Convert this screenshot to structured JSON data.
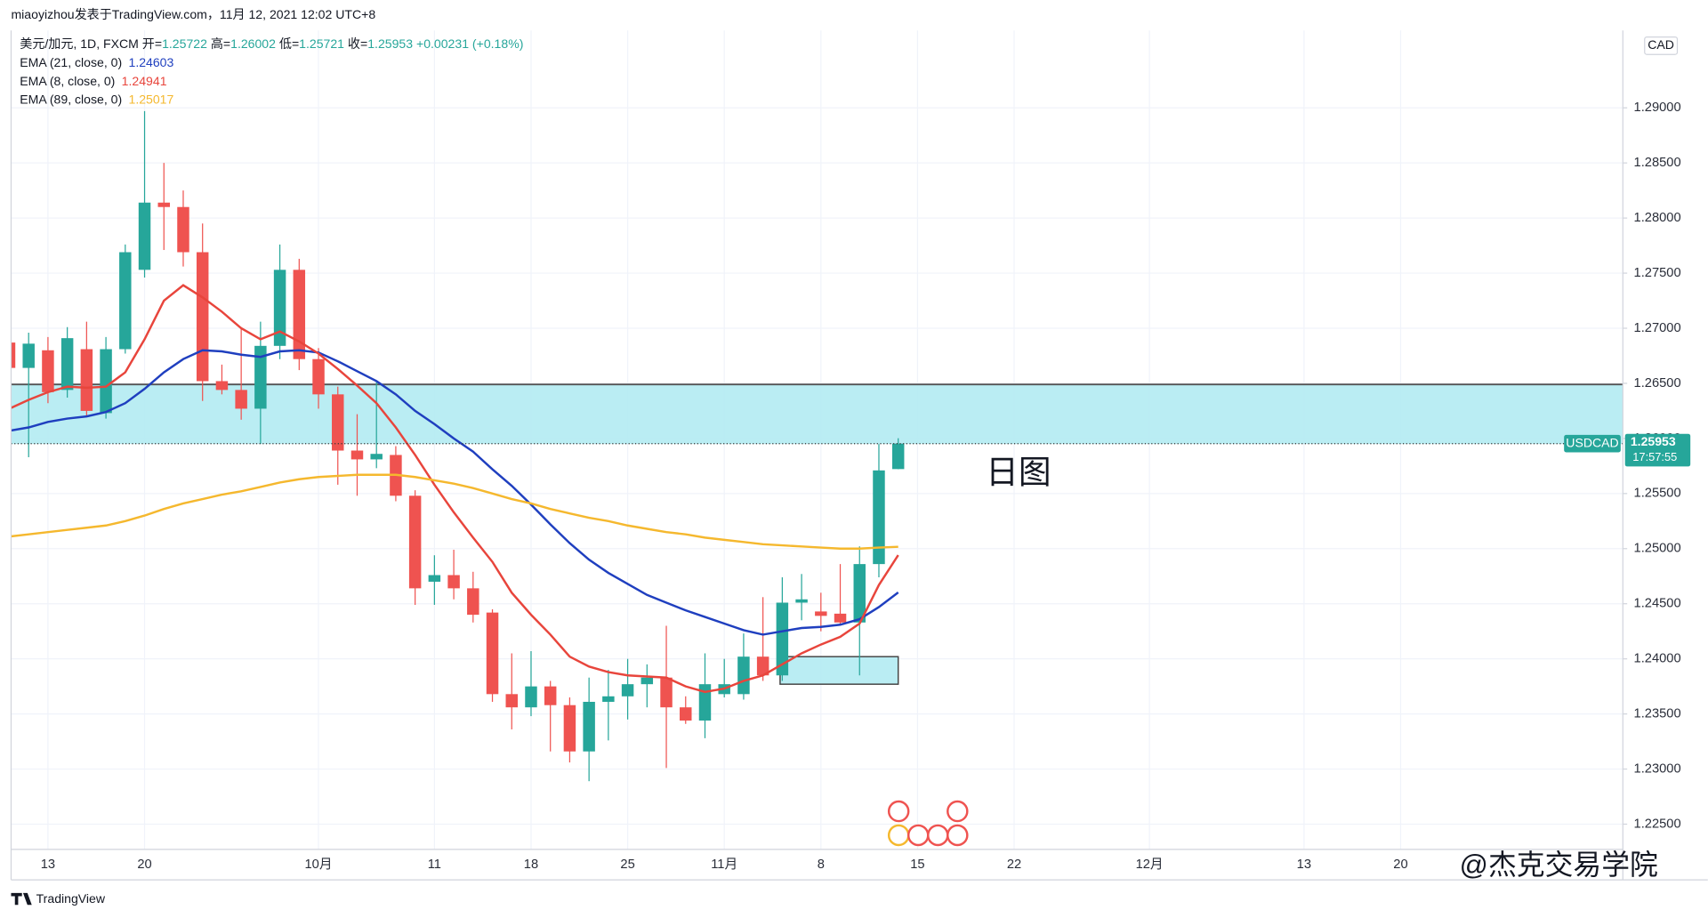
{
  "header": {
    "publisher": "miaoyizhou发表于TradingView.com，11月 12, 2021 12:02 UTC+8"
  },
  "chart_data": {
    "type": "candlestick",
    "title": "美元/加元, 1D, FXCM",
    "ohlc_labels": {
      "open": "开=",
      "high": "高=",
      "low": "低=",
      "close": "收="
    },
    "change_label": "+0.00231 (+0.18%)",
    "symbol": "USDCAD",
    "countdown": "17:57:55",
    "currency": "CAD",
    "annotation": "日图",
    "up_color": "#26a69a",
    "down_color": "#ef5350",
    "zone_color": "#b2ebf2",
    "categories": [
      null,
      null,
      "13",
      null,
      null,
      null,
      null,
      "20",
      null,
      null,
      null,
      null,
      null,
      null,
      null,
      null,
      "10月",
      null,
      null,
      null,
      null,
      null,
      "11",
      null,
      null,
      null,
      null,
      "18",
      null,
      null,
      null,
      null,
      "25",
      null,
      null,
      null,
      null,
      "11月",
      null,
      null,
      null,
      null,
      "8",
      null,
      null,
      null,
      null,
      "15",
      null,
      null,
      null,
      null,
      "22",
      null,
      null,
      null,
      null,
      null,
      null,
      "12月",
      null,
      null,
      null,
      null,
      null,
      null,
      null,
      "13",
      null,
      null,
      null,
      null,
      "20",
      null,
      null,
      null,
      null,
      null,
      null,
      null,
      null,
      null,
      null,
      null
    ],
    "open": [
      1.2687,
      1.2664,
      1.268,
      1.2644,
      1.2681,
      1.2623,
      1.2681,
      1.2753,
      1.2814,
      1.281,
      1.2769,
      1.2652,
      1.2644,
      1.2627,
      1.2684,
      1.2753,
      1.2672,
      1.264,
      1.2589,
      1.2581,
      1.2585,
      1.2548,
      1.247,
      1.2476,
      1.2464,
      1.2442,
      1.2368,
      1.2356,
      1.2375,
      1.2358,
      1.2316,
      1.2361,
      1.2366,
      1.2377,
      1.2383,
      1.2356,
      1.2344,
      1.2368,
      1.2368,
      1.2402,
      1.2385,
      1.2451,
      1.2443,
      1.2441,
      1.2433,
      1.2486,
      1.25722,
      null,
      null,
      null,
      null,
      null,
      null,
      null,
      null,
      null,
      null,
      null,
      null,
      null,
      null,
      null,
      null,
      null,
      null,
      null,
      null,
      null,
      null,
      null,
      null,
      null,
      null,
      null,
      null,
      null,
      null,
      null,
      null,
      null,
      null,
      null,
      null,
      null
    ],
    "high": [
      1.2696,
      1.2696,
      1.2692,
      1.2701,
      1.2706,
      1.2692,
      1.2776,
      1.2897,
      1.285,
      1.2825,
      1.2795,
      1.2667,
      1.2701,
      1.2706,
      1.2776,
      1.2763,
      1.2682,
      1.2647,
      1.2622,
      1.2652,
      1.2593,
      1.2553,
      1.2494,
      1.2499,
      1.2479,
      1.2445,
      1.2405,
      1.2407,
      1.238,
      1.2365,
      1.2383,
      1.239,
      1.24,
      1.2395,
      1.243,
      1.2366,
      1.2405,
      1.24,
      1.2423,
      1.2456,
      1.2474,
      1.2477,
      1.246,
      1.2486,
      1.2502,
      1.2595,
      1.26002,
      null,
      null,
      null,
      null,
      null,
      null,
      null,
      null,
      null,
      null,
      null,
      null,
      null,
      null,
      null,
      null,
      null,
      null,
      null,
      null,
      null,
      null,
      null,
      null,
      null,
      null,
      null,
      null,
      null,
      null,
      null,
      null,
      null,
      null,
      null,
      null,
      null
    ],
    "low": [
      1.2657,
      1.2583,
      1.2632,
      1.2637,
      1.262,
      1.2618,
      1.2677,
      1.2746,
      1.2771,
      1.2756,
      1.2634,
      1.264,
      1.2617,
      1.2595,
      1.2672,
      1.2662,
      1.2627,
      1.2558,
      1.2548,
      1.2573,
      1.2543,
      1.2449,
      1.2449,
      1.2454,
      1.2433,
      1.2361,
      1.2336,
      1.2348,
      1.2316,
      1.2306,
      1.2289,
      1.2326,
      1.2345,
      1.2356,
      1.2301,
      1.2341,
      1.2328,
      1.2365,
      1.2363,
      1.238,
      1.238,
      1.2435,
      1.2425,
      1.243,
      1.2385,
      1.2474,
      1.25721,
      null,
      null,
      null,
      null,
      null,
      null,
      null,
      null,
      null,
      null,
      null,
      null,
      null,
      null,
      null,
      null,
      null,
      null,
      null,
      null,
      null,
      null,
      null,
      null,
      null,
      null,
      null,
      null,
      null,
      null,
      null,
      null,
      null,
      null,
      null,
      null,
      null
    ],
    "close": [
      1.2664,
      1.2686,
      1.2642,
      1.2691,
      1.2625,
      1.2681,
      1.2769,
      1.2814,
      1.281,
      1.2769,
      1.2652,
      1.2644,
      1.2627,
      1.2684,
      1.2753,
      1.2672,
      1.264,
      1.2589,
      1.2581,
      1.2586,
      1.2548,
      1.2464,
      1.2476,
      1.2464,
      1.244,
      1.2368,
      1.2356,
      1.2375,
      1.2358,
      1.2316,
      1.2361,
      1.2366,
      1.2377,
      1.2383,
      1.2356,
      1.2344,
      1.2377,
      1.2377,
      1.2402,
      1.2385,
      1.2451,
      1.2454,
      1.2439,
      1.2433,
      1.2486,
      1.2571,
      1.25953,
      null,
      null,
      null,
      null,
      null,
      null,
      null,
      null,
      null,
      null,
      null,
      null,
      null,
      null,
      null,
      null,
      null,
      null,
      null,
      null,
      null,
      null,
      null,
      null,
      null,
      null,
      null,
      null,
      null,
      null,
      null,
      null,
      null,
      null,
      null,
      null,
      null
    ],
    "series": [
      {
        "name": "EMA (21, close, 0)",
        "color": "#1f3fbf",
        "values": [
          1.2607,
          1.261,
          1.2615,
          1.2618,
          1.262,
          1.2624,
          1.2632,
          1.2645,
          1.266,
          1.2672,
          1.268,
          1.2679,
          1.2676,
          1.2674,
          1.2679,
          1.268,
          1.2678,
          1.267,
          1.2661,
          1.2652,
          1.264,
          1.2625,
          1.2613,
          1.26,
          1.2588,
          1.2572,
          1.2557,
          1.254,
          1.2522,
          1.2505,
          1.249,
          1.2478,
          1.2468,
          1.2458,
          1.2451,
          1.2444,
          1.2438,
          1.2432,
          1.2426,
          1.2422,
          1.2425,
          1.2428,
          1.2429,
          1.2431,
          1.2436,
          1.2447,
          1.24603,
          null,
          null,
          null,
          null,
          null,
          null,
          null,
          null,
          null,
          null,
          null,
          null,
          null,
          null,
          null,
          null,
          null,
          null,
          null,
          null,
          null,
          null,
          null,
          null,
          null,
          null,
          null,
          null,
          null,
          null,
          null,
          null,
          null,
          null,
          null,
          null,
          null
        ]
      },
      {
        "name": "EMA (8, close, 0)",
        "color": "#e8453c",
        "values": [
          1.2627,
          1.2635,
          1.2642,
          1.2647,
          1.2646,
          1.2647,
          1.266,
          1.269,
          1.2725,
          1.2739,
          1.2728,
          1.2715,
          1.27,
          1.269,
          1.2697,
          1.2688,
          1.2677,
          1.2663,
          1.2648,
          1.2632,
          1.261,
          1.2585,
          1.2558,
          1.2533,
          1.251,
          1.2488,
          1.246,
          1.244,
          1.2422,
          1.2402,
          1.2393,
          1.2388,
          1.2385,
          1.2384,
          1.2383,
          1.2375,
          1.237,
          1.2373,
          1.238,
          1.2385,
          1.2395,
          1.2405,
          1.2413,
          1.242,
          1.2432,
          1.2467,
          1.24941,
          null,
          null,
          null,
          null,
          null,
          null,
          null,
          null,
          null,
          null,
          null,
          null,
          null,
          null,
          null,
          null,
          null,
          null,
          null,
          null,
          null,
          null,
          null,
          null,
          null,
          null,
          null,
          null,
          null,
          null,
          null,
          null,
          null,
          null,
          null,
          null,
          null
        ]
      },
      {
        "name": "EMA (89, close, 0)",
        "color": "#f5b82e",
        "values": [
          1.2511,
          1.2513,
          1.2515,
          1.2517,
          1.2519,
          1.2521,
          1.2525,
          1.253,
          1.2536,
          1.2541,
          1.2545,
          1.2549,
          1.2552,
          1.2556,
          1.256,
          1.2563,
          1.2565,
          1.2566,
          1.2567,
          1.2567,
          1.2567,
          1.2565,
          1.2562,
          1.2559,
          1.2555,
          1.255,
          1.2545,
          1.2541,
          1.2536,
          1.2532,
          1.2528,
          1.2525,
          1.2521,
          1.2518,
          1.2515,
          1.2513,
          1.251,
          1.2508,
          1.2506,
          1.2504,
          1.2503,
          1.2502,
          1.2501,
          1.25,
          1.25,
          1.2501,
          1.25017,
          null,
          null,
          null,
          null,
          null,
          null,
          null,
          null,
          null,
          null,
          null,
          null,
          null,
          null,
          null,
          null,
          null,
          null,
          null,
          null,
          null,
          null,
          null,
          null,
          null,
          null,
          null,
          null,
          null,
          null,
          null,
          null,
          null,
          null,
          null,
          null,
          null
        ]
      }
    ],
    "zones": [
      {
        "top": 1.2649,
        "bottom": 1.2595
      },
      {
        "top": 1.2402,
        "bottom": 1.2377
      }
    ],
    "ylim": [
      1.22271,
      1.29682
    ],
    "yticks": [
      {
        "value": 1.225,
        "label": "1.22500"
      },
      {
        "value": 1.23,
        "label": "1.23000"
      },
      {
        "value": 1.235,
        "label": "1.23500"
      },
      {
        "value": 1.24,
        "label": "1.24000"
      },
      {
        "value": 1.245,
        "label": "1.24500"
      },
      {
        "value": 1.25,
        "label": "1.25000"
      },
      {
        "value": 1.255,
        "label": "1.25500"
      },
      {
        "value": 1.26,
        "label": "1.26000"
      },
      {
        "value": 1.265,
        "label": "1.26500"
      },
      {
        "value": 1.27,
        "label": "1.27000"
      },
      {
        "value": 1.275,
        "label": "1.27500"
      },
      {
        "value": 1.28,
        "label": "1.28000"
      },
      {
        "value": 1.285,
        "label": "1.28500"
      },
      {
        "value": 1.29,
        "label": "1.29000"
      }
    ],
    "grid": true
  },
  "footer": {
    "brand": "TradingView",
    "watermark": "@杰克交易学院"
  }
}
